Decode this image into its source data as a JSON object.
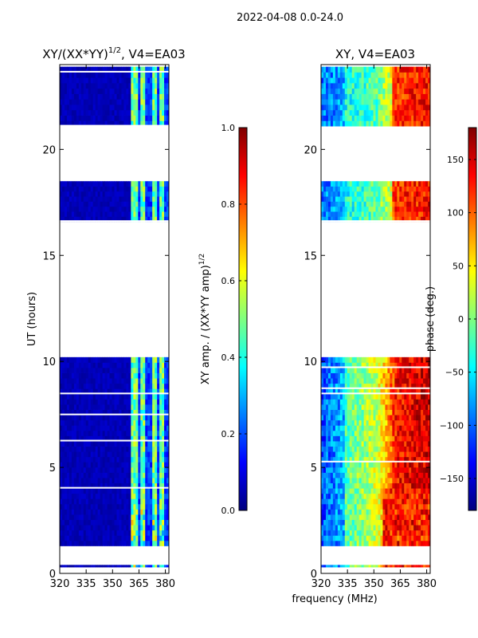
{
  "suptitle": "2022-04-08 0.0-24.0",
  "colors": {
    "jet": [
      "#00007f",
      "#0000ff",
      "#007fff",
      "#00ffff",
      "#7fff7f",
      "#ffff00",
      "#ff7f00",
      "#ff0000",
      "#7f0000"
    ],
    "navy": "#00008f",
    "gap": "#ffffff"
  },
  "chart_data": [
    {
      "type": "heatmap",
      "title_main": "XY/(XX*YY)",
      "title_sup": "1/2",
      "title_suffix": ", V4=EA03",
      "xlabel": "",
      "ylabel": "UT (hours)",
      "xlim": [
        320,
        382
      ],
      "ylim": [
        0,
        24
      ],
      "xticks": [
        "320",
        "335",
        "350",
        "365",
        "380"
      ],
      "xtick_values": [
        320,
        335,
        350,
        365,
        380
      ],
      "yticks": [
        "0",
        "5",
        "10",
        "15",
        "20"
      ],
      "ytick_values": [
        0,
        5,
        10,
        15,
        20
      ],
      "observed_time_ranges": [
        [
          0.3,
          0.4
        ],
        [
          1.3,
          10.2
        ],
        [
          16.6,
          18.5
        ],
        [
          21.1,
          23.9
        ]
      ],
      "active_freq_bands": [
        [
          360,
          364
        ],
        [
          366,
          369
        ],
        [
          372,
          375
        ],
        [
          377,
          379
        ]
      ],
      "value_range": [
        0,
        1
      ],
      "description": "Low amplitude (~0.05) over 320-360 MHz; elevated (~0.3-0.6) in narrow bands above 360 MHz"
    },
    {
      "type": "heatmap",
      "title": "XY, V4=EA03",
      "xlabel": "frequency (MHz)",
      "ylabel": "",
      "xlim": [
        320,
        382
      ],
      "ylim": [
        0,
        24
      ],
      "xticks": [
        "320",
        "335",
        "350",
        "365",
        "380"
      ],
      "xtick_values": [
        320,
        335,
        350,
        365,
        380
      ],
      "yticks": [
        "0",
        "5",
        "10",
        "15",
        "20"
      ],
      "ytick_values": [
        0,
        5,
        10,
        15,
        20
      ],
      "observed_time_ranges": [
        [
          0.3,
          0.4
        ],
        [
          1.3,
          10.2
        ],
        [
          16.6,
          18.5
        ],
        [
          21.1,
          23.9
        ]
      ],
      "value_range": [
        -180,
        180
      ],
      "description": "Phase varies with frequency; ~-100 deg near 320-335 MHz, ~0-30 deg near 345 MHz, ~150 deg near 365-380 MHz"
    }
  ],
  "colorbars": [
    {
      "label_main": "XY amp. / (XX*YY amp)",
      "label_sup": "1/2",
      "range": [
        0,
        1
      ],
      "ticks": [
        "0.0",
        "0.2",
        "0.4",
        "0.6",
        "0.8",
        "1.0"
      ],
      "tick_values": [
        0,
        0.2,
        0.4,
        0.6,
        0.8,
        1.0
      ]
    },
    {
      "label": "phase (deg.)",
      "range": [
        -180,
        180
      ],
      "ticks": [
        "−150",
        "−100",
        "−50",
        "0",
        "50",
        "100",
        "150"
      ],
      "tick_values": [
        -150,
        -100,
        -50,
        0,
        50,
        100,
        150
      ]
    }
  ]
}
